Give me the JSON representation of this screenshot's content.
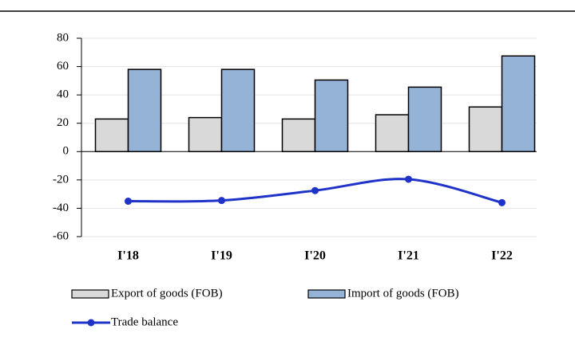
{
  "chart_data": {
    "type": "bar",
    "categories": [
      "I'18",
      "I'19",
      "I'20",
      "I'21",
      "I'22"
    ],
    "series": [
      {
        "name": "Export of goods (FOB)",
        "color": "#d9d9d9",
        "values": [
          23,
          24,
          23,
          26,
          31.5
        ]
      },
      {
        "name": "Import of goods (FOB)",
        "color": "#95b3d7",
        "values": [
          58,
          58,
          50.5,
          45.5,
          67.5
        ]
      },
      {
        "name": "Trade balance",
        "type": "line",
        "color": "#1f33c8",
        "values": [
          -35,
          -34.5,
          -27.5,
          -19.5,
          -36
        ]
      }
    ],
    "ylim": [
      -60,
      80
    ],
    "yticks": [
      -60,
      -40,
      -20,
      0,
      20,
      40,
      60,
      80
    ],
    "grid": true
  }
}
